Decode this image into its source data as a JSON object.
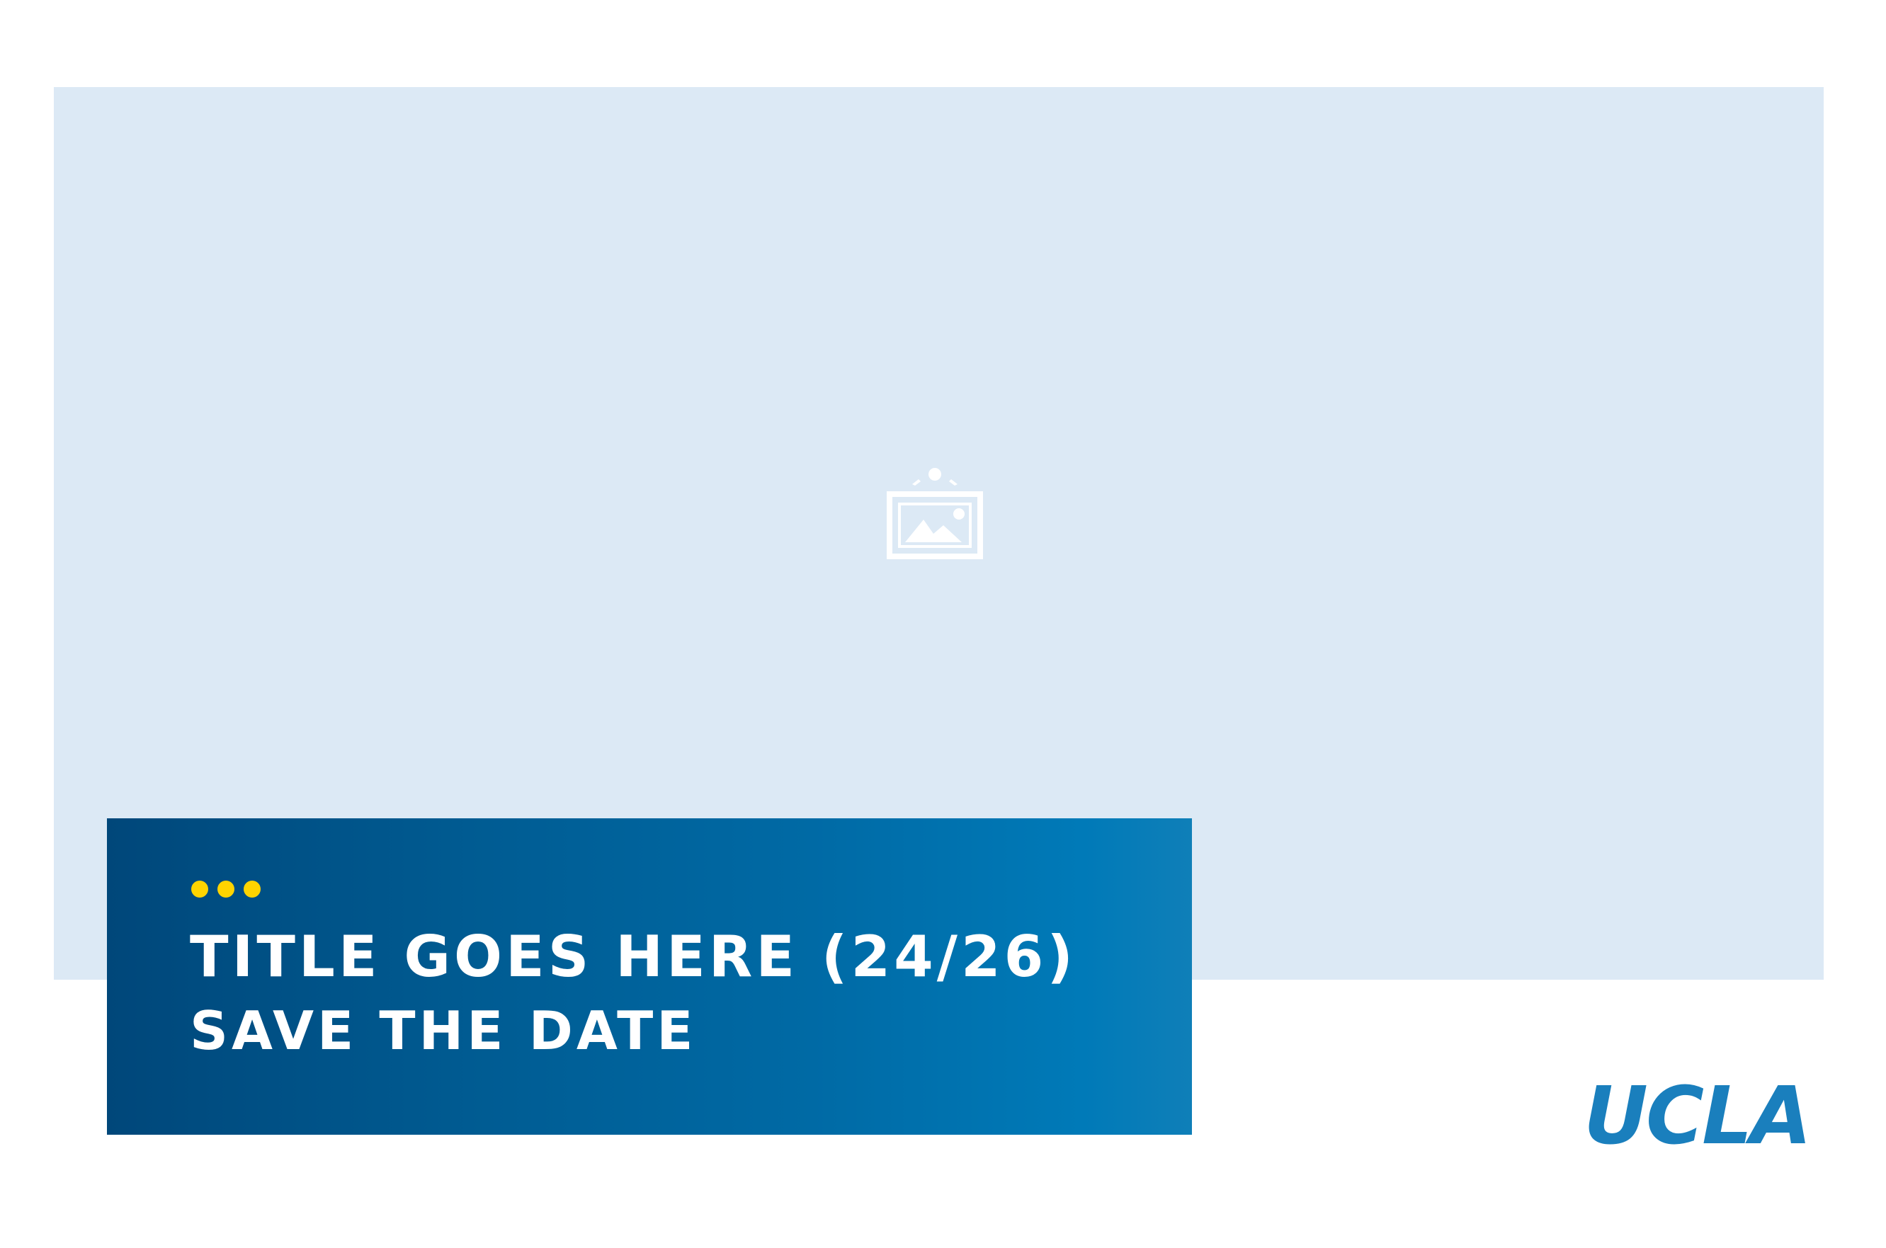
{
  "header_image": {
    "placeholder_icon": "image-placeholder-icon",
    "background_color": "#dce9f5"
  },
  "title_panel": {
    "decoration_icon": "three-dots-icon",
    "dot_color": "#ffd400",
    "title": "TITLE GOES HERE (24/26)",
    "subtitle": "SAVE THE DATE"
  },
  "brand": {
    "logo_text": "UCLA",
    "color": "#1a7fbd"
  }
}
